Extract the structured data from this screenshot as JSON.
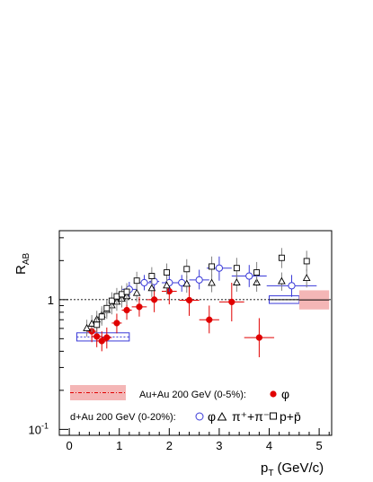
{
  "chart_data": {
    "type": "scatter",
    "title": "",
    "xlabel": "p",
    "xlabel_sub": "T",
    "xlabel_unit": "(GeV/c)",
    "ylabel": "R",
    "ylabel_sub": "AB",
    "x_range": [
      -0.2,
      5.25
    ],
    "y_range": [
      0.09,
      3.4
    ],
    "y_scale": "log",
    "x_ticks": [
      0,
      1,
      2,
      3,
      4,
      5
    ],
    "x_tick_labels": [
      "0",
      "1",
      "2",
      "3",
      "4",
      "5"
    ],
    "y_tick_labels": [
      {
        "value": 1,
        "label": "1"
      },
      {
        "value": 0.1,
        "label": "10",
        "sup": "-1"
      }
    ],
    "reference_line": 1,
    "legend": {
      "row1_label": "Au+Au 200 GeV (0-5%):",
      "row1_symbol": "φ",
      "row2_label": "d+Au 200 GeV (0-20%):",
      "row2_symbol_phi": "φ",
      "row2_symbol_pion": "π⁺+π⁻",
      "row2_symbol_proton": "p+p̄"
    },
    "colors": {
      "auau_phi": "#e00000",
      "auau_band": "#f4b6b6",
      "dau_phi": "#3a3ad8",
      "pion": "#000000",
      "proton": "#000000",
      "error_pion": "#808080"
    },
    "series": [
      {
        "name": "Au+Au 200 GeV (0-5%): φ",
        "marker": "filled-circle",
        "points": [
          {
            "x": 0.45,
            "y": 0.57,
            "ylo": 0.47,
            "yhi": 0.68,
            "xerr": 0.1
          },
          {
            "x": 0.55,
            "y": 0.52,
            "ylo": 0.43,
            "yhi": 0.62,
            "xerr": 0.1
          },
          {
            "x": 0.65,
            "y": 0.48,
            "ylo": 0.4,
            "yhi": 0.57,
            "xerr": 0.1
          },
          {
            "x": 0.75,
            "y": 0.51,
            "ylo": 0.42,
            "yhi": 0.61,
            "xerr": 0.1
          },
          {
            "x": 0.95,
            "y": 0.66,
            "ylo": 0.55,
            "yhi": 0.78,
            "xerr": 0.1
          },
          {
            "x": 1.15,
            "y": 0.83,
            "ylo": 0.7,
            "yhi": 0.98,
            "xerr": 0.1
          },
          {
            "x": 1.4,
            "y": 0.88,
            "ylo": 0.74,
            "yhi": 1.05,
            "xerr": 0.15
          },
          {
            "x": 1.7,
            "y": 1.0,
            "ylo": 0.8,
            "yhi": 1.25,
            "xerr": 0.15
          },
          {
            "x": 2.0,
            "y": 1.16,
            "ylo": 0.92,
            "yhi": 1.45,
            "xerr": 0.15
          },
          {
            "x": 2.4,
            "y": 0.99,
            "ylo": 0.75,
            "yhi": 1.3,
            "xerr": 0.2
          },
          {
            "x": 2.8,
            "y": 0.7,
            "ylo": 0.55,
            "yhi": 0.9,
            "xerr": 0.2
          },
          {
            "x": 3.25,
            "y": 0.96,
            "ylo": 0.68,
            "yhi": 1.35,
            "xerr": 0.25
          },
          {
            "x": 3.8,
            "y": 0.51,
            "ylo": 0.36,
            "yhi": 0.72,
            "xerr": 0.3
          }
        ]
      },
      {
        "name": "d+Au 200 GeV (0-20%): φ",
        "marker": "open-circle",
        "points": [
          {
            "x": 1.2,
            "y": 1.2,
            "ylo": 1.05,
            "yhi": 1.37,
            "xerr": 0.15
          },
          {
            "x": 1.5,
            "y": 1.35,
            "ylo": 1.18,
            "yhi": 1.55,
            "xerr": 0.15
          },
          {
            "x": 1.7,
            "y": 1.38,
            "ylo": 1.2,
            "yhi": 1.58,
            "xerr": 0.1
          },
          {
            "x": 2.0,
            "y": 1.35,
            "ylo": 1.15,
            "yhi": 1.55,
            "xerr": 0.15
          },
          {
            "x": 2.25,
            "y": 1.35,
            "ylo": 1.15,
            "yhi": 1.55,
            "xerr": 0.15
          },
          {
            "x": 2.6,
            "y": 1.42,
            "ylo": 1.2,
            "yhi": 1.7,
            "xerr": 0.2
          },
          {
            "x": 3.0,
            "y": 1.75,
            "ylo": 1.4,
            "yhi": 2.15,
            "xerr": 0.25
          },
          {
            "x": 3.6,
            "y": 1.52,
            "ylo": 1.25,
            "yhi": 1.85,
            "xerr": 0.35
          },
          {
            "x": 4.45,
            "y": 1.28,
            "ylo": 1.05,
            "yhi": 1.55,
            "xerr": 0.5
          }
        ]
      },
      {
        "name": "d+Au 200 GeV (0-20%): π⁺+π⁻",
        "marker": "open-triangle",
        "points": [
          {
            "x": 0.35,
            "y": 0.6,
            "ylo": 0.52,
            "yhi": 0.7
          },
          {
            "x": 0.45,
            "y": 0.65,
            "ylo": 0.56,
            "yhi": 0.76
          },
          {
            "x": 0.55,
            "y": 0.7,
            "ylo": 0.6,
            "yhi": 0.82
          },
          {
            "x": 0.65,
            "y": 0.76,
            "ylo": 0.65,
            "yhi": 0.89
          },
          {
            "x": 0.75,
            "y": 0.83,
            "ylo": 0.71,
            "yhi": 0.97
          },
          {
            "x": 0.85,
            "y": 0.9,
            "ylo": 0.77,
            "yhi": 1.05
          },
          {
            "x": 0.95,
            "y": 0.96,
            "ylo": 0.82,
            "yhi": 1.12
          },
          {
            "x": 1.05,
            "y": 1.01,
            "ylo": 0.87,
            "yhi": 1.18
          },
          {
            "x": 1.15,
            "y": 1.06,
            "ylo": 0.91,
            "yhi": 1.23
          },
          {
            "x": 1.35,
            "y": 1.12,
            "ylo": 0.96,
            "yhi": 1.3
          },
          {
            "x": 1.65,
            "y": 1.22,
            "ylo": 1.05,
            "yhi": 1.42
          },
          {
            "x": 1.95,
            "y": 1.28,
            "ylo": 1.1,
            "yhi": 1.49
          },
          {
            "x": 2.35,
            "y": 1.32,
            "ylo": 1.13,
            "yhi": 1.54
          },
          {
            "x": 2.85,
            "y": 1.34,
            "ylo": 1.14,
            "yhi": 1.57
          },
          {
            "x": 3.35,
            "y": 1.35,
            "ylo": 1.15,
            "yhi": 1.58
          },
          {
            "x": 3.75,
            "y": 1.35,
            "ylo": 1.15,
            "yhi": 1.58
          },
          {
            "x": 4.25,
            "y": 1.38,
            "ylo": 1.17,
            "yhi": 1.62
          },
          {
            "x": 4.75,
            "y": 1.46,
            "ylo": 1.24,
            "yhi": 1.72
          }
        ]
      },
      {
        "name": "d+Au 200 GeV (0-20%): p+p̄",
        "marker": "open-square",
        "points": [
          {
            "x": 0.55,
            "y": 0.64,
            "ylo": 0.55,
            "yhi": 0.74
          },
          {
            "x": 0.65,
            "y": 0.74,
            "ylo": 0.63,
            "yhi": 0.86
          },
          {
            "x": 0.75,
            "y": 0.86,
            "ylo": 0.74,
            "yhi": 1.0
          },
          {
            "x": 0.85,
            "y": 0.98,
            "ylo": 0.84,
            "yhi": 1.14
          },
          {
            "x": 0.95,
            "y": 1.06,
            "ylo": 0.91,
            "yhi": 1.23
          },
          {
            "x": 1.05,
            "y": 1.1,
            "ylo": 0.95,
            "yhi": 1.28
          },
          {
            "x": 1.15,
            "y": 1.15,
            "ylo": 0.99,
            "yhi": 1.34
          },
          {
            "x": 1.35,
            "y": 1.4,
            "ylo": 1.2,
            "yhi": 1.64
          },
          {
            "x": 1.65,
            "y": 1.52,
            "ylo": 1.3,
            "yhi": 1.78
          },
          {
            "x": 1.95,
            "y": 1.62,
            "ylo": 1.38,
            "yhi": 1.9
          },
          {
            "x": 2.35,
            "y": 1.72,
            "ylo": 1.45,
            "yhi": 2.05
          },
          {
            "x": 2.85,
            "y": 1.8,
            "ylo": 1.5,
            "yhi": 2.15
          },
          {
            "x": 3.35,
            "y": 1.75,
            "ylo": 1.45,
            "yhi": 2.1
          },
          {
            "x": 3.75,
            "y": 1.62,
            "ylo": 1.35,
            "yhi": 1.95
          },
          {
            "x": 4.25,
            "y": 2.1,
            "ylo": 1.75,
            "yhi": 2.5
          },
          {
            "x": 4.75,
            "y": 1.98,
            "ylo": 1.65,
            "yhi": 2.38
          }
        ]
      }
    ],
    "systematic_boxes": [
      {
        "name": "dau-phi-sys-low",
        "x0": 0.15,
        "x1": 1.2,
        "y0": 0.48,
        "y1": 0.555,
        "style": "blue-outline",
        "center_line": "dotted"
      },
      {
        "name": "dau-phi-sys-high",
        "x0": 4.0,
        "x1": 4.6,
        "y0": 0.935,
        "y1": 1.07,
        "style": "blue-outline",
        "center_line": "solid"
      },
      {
        "name": "auau-phi-norm-band",
        "x0": 4.6,
        "x1": 5.2,
        "y0": 0.84,
        "y1": 1.18,
        "style": "red-fill",
        "center_line": "solid"
      }
    ]
  }
}
